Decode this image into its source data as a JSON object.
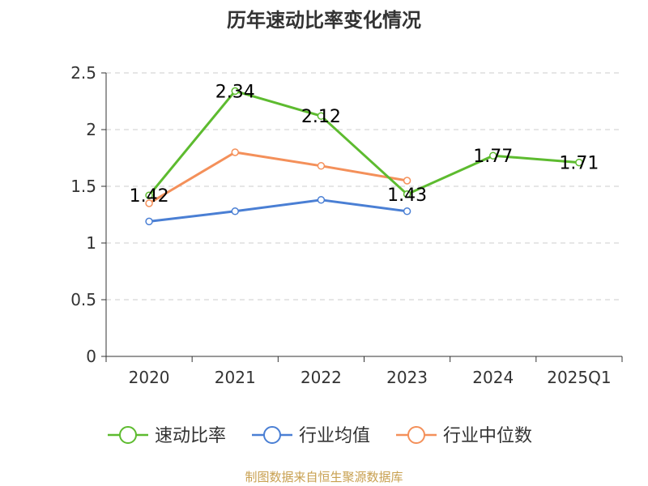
{
  "chart_data": {
    "type": "line",
    "title": "历年速动比率变化情况",
    "categories": [
      "2020",
      "2021",
      "2022",
      "2023",
      "2024",
      "2025Q1"
    ],
    "ylim": [
      0,
      2.5
    ],
    "yticks": [
      "0",
      "0.5",
      "1",
      "1.5",
      "2",
      "2.5"
    ],
    "grid": true,
    "legend_position": "bottom",
    "series": [
      {
        "name": "速动比率",
        "color": "#5dbb2f",
        "values": [
          1.42,
          2.34,
          2.12,
          1.43,
          1.77,
          1.71
        ],
        "labels": [
          "1.42",
          "2.34",
          "2.12",
          "1.43",
          "1.77",
          "1.71"
        ]
      },
      {
        "name": "行业均值",
        "color": "#4a7fd4",
        "values": [
          1.19,
          1.28,
          1.38,
          1.28,
          null,
          null
        ]
      },
      {
        "name": "行业中位数",
        "color": "#f4905a",
        "values": [
          1.35,
          1.8,
          1.68,
          1.55,
          null,
          null
        ]
      }
    ]
  },
  "source_note": "制图数据来自恒生聚源数据库"
}
